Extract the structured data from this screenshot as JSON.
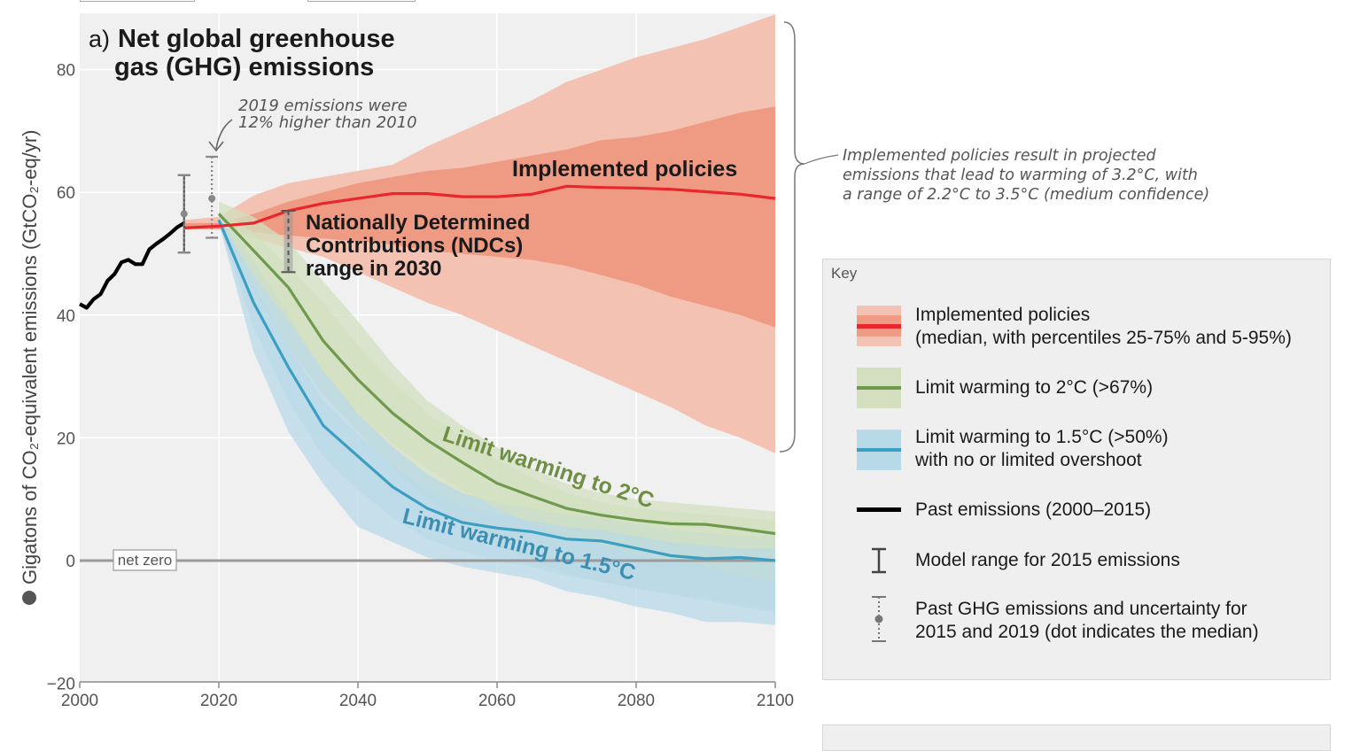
{
  "chart_data": {
    "type": "area",
    "title_prefix": "a)",
    "title_line1": "Net global greenhouse",
    "title_line2": "gas (GHG) emissions",
    "ylabel": "Gigatons of CO₂-equivalent emissions (GtCO₂-eq/yr)",
    "xlabel": "",
    "xlim": [
      2000,
      2100
    ],
    "ylim": [
      -20,
      90
    ],
    "xticks": [
      "2000",
      "2020",
      "2040",
      "2060",
      "2080",
      "2100"
    ],
    "yticks": [
      "80",
      "60",
      "40",
      "20",
      "0",
      "−20"
    ],
    "grid": true,
    "net_zero_label": "net zero",
    "past_emissions": {
      "x": [
        2000,
        2001,
        2002,
        2003,
        2004,
        2005,
        2006,
        2007,
        2008,
        2009,
        2010,
        2011,
        2012,
        2013,
        2014,
        2015
      ],
      "y": [
        41.8,
        41.2,
        42.6,
        43.4,
        45.6,
        46.7,
        48.6,
        49.0,
        48.3,
        48.3,
        50.7,
        51.6,
        52.4,
        53.3,
        54.3,
        55.0
      ]
    },
    "implemented_policies": {
      "x": [
        2015,
        2020,
        2025,
        2030,
        2035,
        2040,
        2045,
        2050,
        2055,
        2060,
        2065,
        2070,
        2075,
        2080,
        2085,
        2090,
        2095,
        2100
      ],
      "median": [
        54.2,
        54.5,
        55.0,
        57.0,
        58.2,
        59.0,
        59.8,
        59.8,
        59.3,
        59.3,
        59.7,
        61.0,
        60.8,
        60.7,
        60.5,
        60.1,
        59.7,
        59.0
      ],
      "p25": [
        54.0,
        54.0,
        53.5,
        53.0,
        52.5,
        52.0,
        51.5,
        50.5,
        50.0,
        49.5,
        49.0,
        48.0,
        46.5,
        45.0,
        43.0,
        41.5,
        40.0,
        38.0
      ],
      "p75": [
        55.0,
        55.0,
        56.5,
        58.5,
        60.0,
        61.5,
        62.5,
        63.5,
        64.0,
        65.0,
        66.0,
        67.0,
        68.5,
        69.0,
        70.0,
        71.5,
        73.0,
        74.0
      ],
      "p5": [
        54.0,
        54.0,
        52.5,
        51.0,
        49.5,
        47.0,
        44.5,
        42.0,
        40.0,
        37.5,
        35.0,
        32.5,
        30.0,
        27.5,
        25.0,
        22.0,
        20.0,
        17.5
      ],
      "p95": [
        55.5,
        56.0,
        59.5,
        61.5,
        62.5,
        63.5,
        64.5,
        67.5,
        70.0,
        72.5,
        75.0,
        78.0,
        80.0,
        82.0,
        83.5,
        85.0,
        87.0,
        89.0
      ]
    },
    "limit_2c": {
      "x": [
        2020,
        2025,
        2030,
        2035,
        2040,
        2045,
        2050,
        2055,
        2060,
        2065,
        2070,
        2075,
        2080,
        2085,
        2090,
        2095,
        2100
      ],
      "median": [
        56.5,
        50.5,
        44.5,
        35.8,
        29.5,
        24.0,
        19.6,
        16.0,
        12.6,
        10.5,
        8.5,
        7.4,
        6.6,
        6.0,
        5.9,
        5.2,
        4.4
      ],
      "low": [
        56.0,
        46.5,
        39.0,
        31.0,
        24.0,
        19.0,
        15.0,
        11.5,
        8.5,
        6.0,
        4.0,
        2.5,
        1.0,
        0.0,
        -1.0,
        -2.5,
        -3.5
      ],
      "high": [
        57.0,
        53.5,
        48.0,
        42.0,
        35.0,
        29.0,
        24.0,
        20.0,
        16.5,
        13.5,
        11.0,
        9.5,
        8.5,
        8.0,
        7.5,
        7.0,
        6.5
      ],
      "low_wide": [
        56.0,
        44.0,
        35.0,
        27.0,
        21.0,
        15.0,
        10.0,
        6.0,
        2.5,
        0.0,
        -2.0,
        -3.5,
        -4.5,
        -5.5,
        -6.0,
        -7.0,
        -8.0
      ],
      "high_wide": [
        58.5,
        56.0,
        52.0,
        45.5,
        39.0,
        32.0,
        26.0,
        22.0,
        18.5,
        15.0,
        12.5,
        11.0,
        10.0,
        9.5,
        9.0,
        8.5,
        8.0
      ]
    },
    "limit_15c": {
      "x": [
        2020,
        2025,
        2030,
        2035,
        2040,
        2045,
        2050,
        2055,
        2060,
        2065,
        2070,
        2075,
        2080,
        2085,
        2090,
        2095,
        2100
      ],
      "median": [
        55.5,
        42.0,
        31.5,
        22.0,
        17.0,
        12.0,
        8.5,
        6.2,
        5.3,
        4.7,
        3.5,
        3.2,
        2.0,
        0.8,
        0.3,
        0.5,
        0.0
      ],
      "low": [
        55.0,
        38.0,
        26.0,
        17.0,
        11.5,
        7.0,
        3.5,
        1.5,
        0.0,
        -1.0,
        -2.5,
        -3.5,
        -4.5,
        -5.5,
        -6.5,
        -7.5,
        -8.5
      ],
      "high": [
        56.0,
        45.0,
        35.0,
        26.0,
        20.5,
        15.5,
        11.5,
        9.0,
        7.5,
        6.5,
        5.5,
        5.0,
        4.0,
        3.0,
        2.5,
        2.0,
        2.0
      ],
      "low_wide": [
        55.0,
        34.0,
        21.0,
        12.5,
        5.5,
        3.0,
        0.5,
        -1.0,
        -2.0,
        -3.0,
        -5.0,
        -6.0,
        -7.5,
        -8.5,
        -10.0,
        -10.0,
        -10.5
      ],
      "high_wide": [
        57.0,
        49.0,
        40.0,
        31.0,
        24.0,
        18.5,
        14.0,
        11.0,
        9.5,
        8.5,
        7.5,
        7.0,
        6.0,
        5.0,
        4.5,
        4.0,
        4.0
      ]
    },
    "model_range_2015": {
      "x": 2015,
      "low": 50.2,
      "high": 62.8,
      "median": 56.5
    },
    "past_uncertainty_2019": {
      "x": 2019,
      "low": 52.6,
      "high": 65.8,
      "median": 59.0
    },
    "ndc_range_2030": {
      "x": 2030,
      "low": 47.0,
      "high": 57.0
    },
    "annotations": {
      "emissions_2019_line1": "2019 emissions were",
      "emissions_2019_line2": "12% higher than 2010",
      "implemented_label": "Implemented policies",
      "ndc_line1": "Nationally Determined",
      "ndc_line2": "Contributions (NDCs)",
      "ndc_line3": "range in 2030",
      "limit_2c_label": "Limit warming to 2°C",
      "limit_15c_label": "Limit warming to 1.5°C",
      "bracket_line1": "Implemented policies result in projected",
      "bracket_line2": "emissions that lead to warming of 3.2°C, with",
      "bracket_line3": "a range of 2.2°C to 3.5°C (medium confidence)"
    },
    "colors": {
      "implemented_line": "#e8262c",
      "implemented_outer": "#f4c2b2",
      "implemented_inner": "#ef9a82",
      "limit_2c_line": "#6f9a4d",
      "limit_2c_band": "#d3dfbf",
      "limit_15c_line": "#3a9fc0",
      "limit_15c_band": "#b8d9e8",
      "past": "#000000",
      "zero_line": "#9a9a9a",
      "label_2c": "#6f8f45",
      "label_15c": "#3c8fb3"
    }
  },
  "key": {
    "title": "Key",
    "items": [
      {
        "line1": "Implemented policies",
        "line2": "(median, with percentiles 25-75% and 5-95%)"
      },
      {
        "line1": "Limit warming to 2°C (>67%)",
        "line2": ""
      },
      {
        "line1": "Limit warming to 1.5°C (>50%)",
        "line2": "with no or limited overshoot"
      },
      {
        "line1": "Past emissions (2000–2015)",
        "line2": ""
      },
      {
        "line1": "Model range for 2015 emissions",
        "line2": ""
      },
      {
        "line1": "Past GHG emissions and uncertainty for",
        "line2": "2015 and 2019 (dot indicates the median)"
      }
    ]
  }
}
